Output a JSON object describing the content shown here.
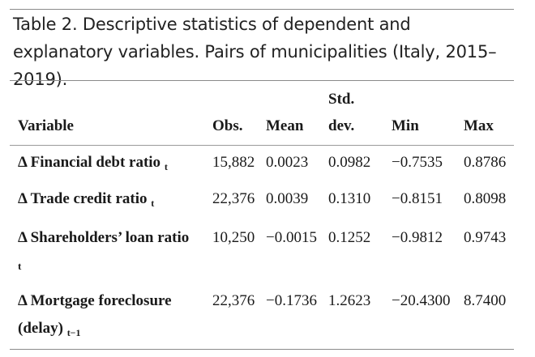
{
  "caption": "Table 2. Descriptive statistics of dependent and explanatory variables. Pairs of municipalities (Italy, 2015–2019).",
  "columns": {
    "variable": "Variable",
    "obs": "Obs.",
    "mean": "Mean",
    "std_line1": "Std.",
    "std_line2": "dev.",
    "min": "Min",
    "max": "Max"
  },
  "rows": [
    {
      "name": "Δ Financial debt ratio",
      "sub": "t",
      "obs": "15,882",
      "mean": "0.0023",
      "std": "0.0982",
      "min": "−0.7535",
      "max": "0.8786"
    },
    {
      "name": "Δ Trade credit ratio",
      "sub": "t",
      "obs": "22,376",
      "mean": "0.0039",
      "std": "0.1310",
      "min": "−0.8151",
      "max": "0.8098"
    },
    {
      "name": "Δ Shareholders’ loan ratio",
      "sub": "t",
      "obs": "10,250",
      "mean": "−0.0015",
      "std": "0.1252",
      "min": "−0.9812",
      "max": "0.9743"
    },
    {
      "name": "Δ Mortgage foreclosure",
      "name2": "(delay)",
      "sub": "t−1",
      "obs": "22,376",
      "mean": "−0.1736",
      "std": "1.2623",
      "min": "−20.4300",
      "max": "8.7400"
    }
  ]
}
